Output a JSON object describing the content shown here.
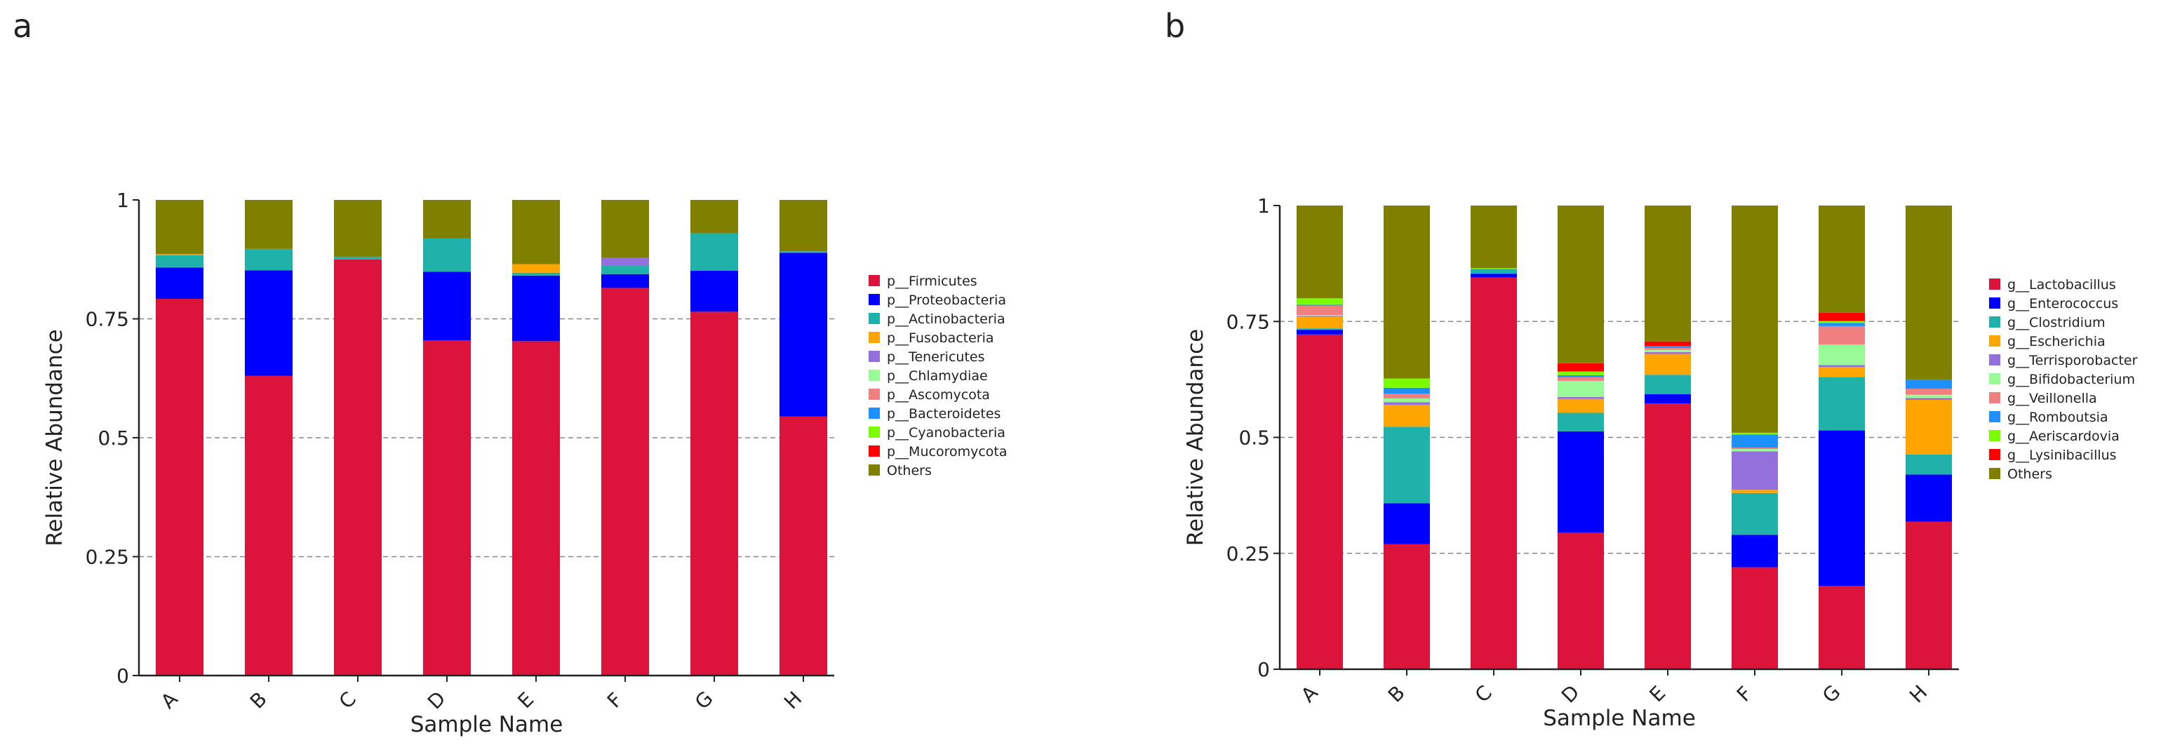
{
  "panels": {
    "a": "a",
    "b": "b"
  },
  "chart_data": [
    {
      "type": "bar",
      "stacked": true,
      "panel": "a",
      "title": "",
      "xlabel": "Sample Name",
      "ylabel": "Relative Abundance",
      "ylim": [
        0,
        1
      ],
      "yticks": [
        "0",
        "0.25",
        "0.5",
        "0.75",
        "1"
      ],
      "grid": "dashed horizontal at 0.25, 0.5, 0.75",
      "legend_position": "right",
      "categories": [
        "A",
        "B",
        "C",
        "D",
        "E",
        "F",
        "G",
        "H"
      ],
      "series": [
        {
          "name": "p__Firmicutes",
          "color": "#dc143c",
          "values": [
            0.792,
            0.63,
            0.875,
            0.705,
            0.703,
            0.815,
            0.765,
            0.545
          ]
        },
        {
          "name": "p__Proteobacteria",
          "color": "#0000ff",
          "values": [
            0.066,
            0.222,
            0.0,
            0.144,
            0.138,
            0.029,
            0.086,
            0.344
          ]
        },
        {
          "name": "p__Actinobacteria",
          "color": "#20b2aa",
          "values": [
            0.026,
            0.045,
            0.005,
            0.07,
            0.006,
            0.018,
            0.079,
            0.003
          ]
        },
        {
          "name": "p__Fusobacteria",
          "color": "#ffa500",
          "values": [
            0.002,
            0.0,
            0.0,
            0.0,
            0.018,
            0.0,
            0.0,
            0.0
          ]
        },
        {
          "name": "p__Tenericutes",
          "color": "#9370db",
          "values": [
            0.0,
            0.0,
            0.0,
            0.0,
            0.0,
            0.016,
            0.0,
            0.0
          ]
        },
        {
          "name": "p__Chlamydiae",
          "color": "#98fb98",
          "values": [
            0.0,
            0.0,
            0.0,
            0.0,
            0.0,
            0.0,
            0.0,
            0.0
          ]
        },
        {
          "name": "p__Ascomycota",
          "color": "#f08080",
          "values": [
            0.0,
            0.0,
            0.0,
            0.0,
            0.0,
            0.0,
            0.0,
            0.0
          ]
        },
        {
          "name": "p__Bacteroidetes",
          "color": "#1e90ff",
          "values": [
            0.0,
            0.0,
            0.0,
            0.0,
            0.0,
            0.0,
            0.0,
            0.0
          ]
        },
        {
          "name": "p__Cyanobacteria",
          "color": "#7cfc00",
          "values": [
            0.0,
            0.0,
            0.0,
            0.0,
            0.0,
            0.0,
            0.0,
            0.0
          ]
        },
        {
          "name": "p__Mucoromycota",
          "color": "#ff0000",
          "values": [
            0.0,
            0.0,
            0.0,
            0.0,
            0.0,
            0.0,
            0.0,
            0.0
          ]
        },
        {
          "name": "Others",
          "color": "#808000",
          "values": [
            0.114,
            0.103,
            0.12,
            0.081,
            0.135,
            0.122,
            0.07,
            0.108
          ]
        }
      ]
    },
    {
      "type": "bar",
      "stacked": true,
      "panel": "b",
      "title": "",
      "xlabel": "Sample Name",
      "ylabel": "Relative Abundance",
      "ylim": [
        0,
        1
      ],
      "yticks": [
        "0",
        "0.25",
        "0.5",
        "0.75",
        "1"
      ],
      "grid": "dashed horizontal at 0.25, 0.5, 0.75",
      "legend_position": "right",
      "categories": [
        "A",
        "B",
        "C",
        "D",
        "E",
        "F",
        "G",
        "H"
      ],
      "series": [
        {
          "name": "g__Lactobacillus",
          "color": "#dc143c",
          "values": [
            0.722,
            0.27,
            0.845,
            0.295,
            0.573,
            0.22,
            0.18,
            0.318
          ]
        },
        {
          "name": "g__Enterococcus",
          "color": "#0000ff",
          "values": [
            0.01,
            0.088,
            0.008,
            0.218,
            0.02,
            0.07,
            0.335,
            0.102
          ]
        },
        {
          "name": "g__Clostridium",
          "color": "#20b2aa",
          "values": [
            0.003,
            0.165,
            0.01,
            0.04,
            0.042,
            0.09,
            0.115,
            0.043
          ]
        },
        {
          "name": "g__Escherichia",
          "color": "#ffa500",
          "values": [
            0.025,
            0.047,
            0.0,
            0.03,
            0.045,
            0.007,
            0.022,
            0.118
          ]
        },
        {
          "name": "g__Terrisporobacter",
          "color": "#9370db",
          "values": [
            0.002,
            0.006,
            0.0,
            0.004,
            0.004,
            0.083,
            0.004,
            0.004
          ]
        },
        {
          "name": "g__Bifidobacterium",
          "color": "#98fb98",
          "values": [
            0.002,
            0.008,
            0.0,
            0.035,
            0.005,
            0.005,
            0.044,
            0.007
          ]
        },
        {
          "name": "g__Veillonella",
          "color": "#f08080",
          "values": [
            0.02,
            0.01,
            0.0,
            0.008,
            0.004,
            0.003,
            0.04,
            0.013
          ]
        },
        {
          "name": "g__Romboutsia",
          "color": "#1e90ff",
          "values": [
            0.002,
            0.013,
            0.0,
            0.004,
            0.004,
            0.028,
            0.007,
            0.02
          ]
        },
        {
          "name": "g__Aeriscardovia",
          "color": "#7cfc00",
          "values": [
            0.014,
            0.02,
            0.002,
            0.008,
            0.0,
            0.004,
            0.004,
            0.0
          ]
        },
        {
          "name": "g__Lysinibacillus",
          "color": "#ff0000",
          "values": [
            0.0,
            0.0,
            0.0,
            0.018,
            0.01,
            0.0,
            0.018,
            0.0
          ]
        },
        {
          "name": "Others",
          "color": "#808000",
          "values": [
            0.2,
            0.373,
            0.135,
            0.34,
            0.293,
            0.49,
            0.231,
            0.375
          ]
        }
      ]
    }
  ]
}
